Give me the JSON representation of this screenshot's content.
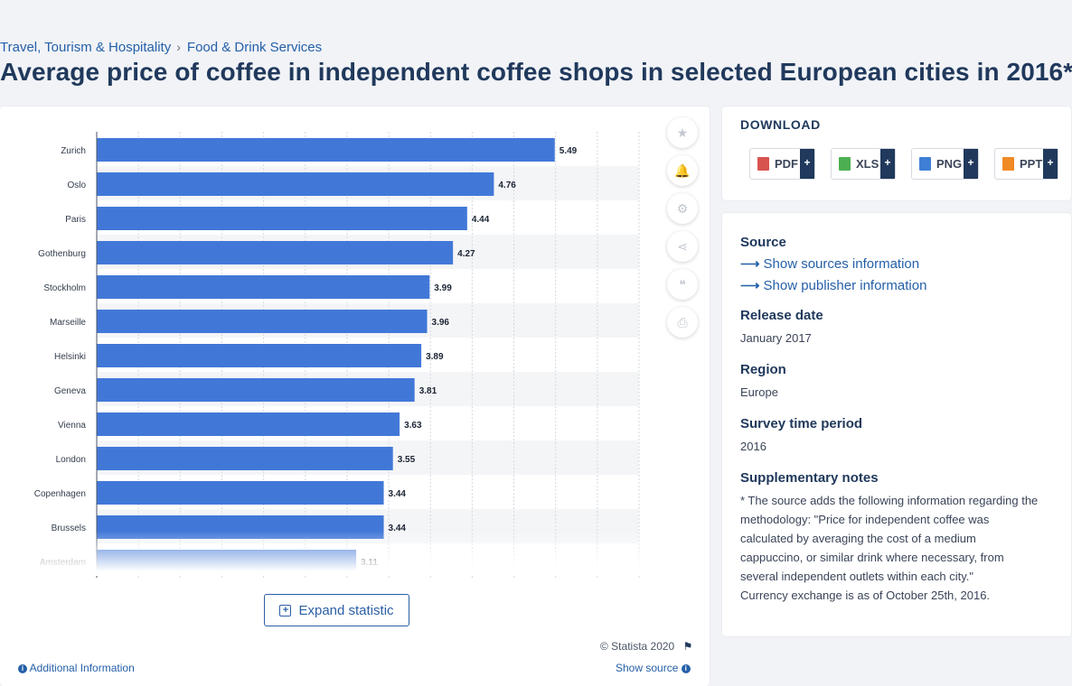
{
  "breadcrumb": {
    "items": [
      "Travel, Tourism & Hospitality",
      "Food & Drink Services"
    ],
    "separator": "›"
  },
  "title": "Average price of coffee in independent coffee shops in selected European cities in 2016*",
  "chart_data": {
    "type": "bar",
    "orientation": "horizontal",
    "categories": [
      "Zurich",
      "Oslo",
      "Paris",
      "Gothenburg",
      "Stockholm",
      "Marseille",
      "Helsinki",
      "Geneva",
      "Vienna",
      "London",
      "Copenhagen",
      "Brussels",
      "Amsterdam"
    ],
    "values": [
      5.49,
      4.76,
      4.44,
      4.27,
      3.99,
      3.96,
      3.89,
      3.81,
      3.63,
      3.55,
      3.44,
      3.44,
      3.11
    ],
    "xlim": [
      0,
      6.5
    ],
    "grid": true,
    "bar_color": "#4178d8",
    "value_label_color": "#1b2433",
    "truncated_with_fade": true
  },
  "chart_actions": {
    "icons": [
      "star-icon",
      "bell-icon",
      "gear-icon",
      "share-icon",
      "quote-icon",
      "print-icon"
    ],
    "glyphs": [
      "★",
      "🔔",
      "⚙",
      "⋖",
      "❝",
      "⎙"
    ]
  },
  "expand_label": "Expand statistic",
  "copyright": "© Statista 2020",
  "additional_info": "Additional Information",
  "show_source": "Show source",
  "download": {
    "title": "DOWNLOAD",
    "buttons": [
      {
        "label": "PDF",
        "color": "#d9534f"
      },
      {
        "label": "XLS",
        "color": "#4caf50"
      },
      {
        "label": "PNG",
        "color": "#3f7fd6"
      },
      {
        "label": "PPT",
        "color": "#f08a24"
      }
    ],
    "plus": "+"
  },
  "meta": {
    "source_heading": "Source",
    "source_link": "Show sources information",
    "publisher_link": "Show publisher information",
    "release_heading": "Release date",
    "release_value": "January 2017",
    "region_heading": "Region",
    "region_value": "Europe",
    "survey_heading": "Survey time period",
    "survey_value": "2016",
    "notes_heading": "Supplementary notes",
    "notes_value": "* The source adds the following information regarding the methodology: \"Price for independent coffee was calculated by averaging the cost of a medium cappuccino, or similar drink where necessary, from several independent outlets within each city.\"",
    "notes_value2": "Currency exchange is as of October 25th, 2016."
  },
  "colors": {
    "title": "#20395c",
    "link": "#2560a8",
    "accent": "#4178d8"
  }
}
